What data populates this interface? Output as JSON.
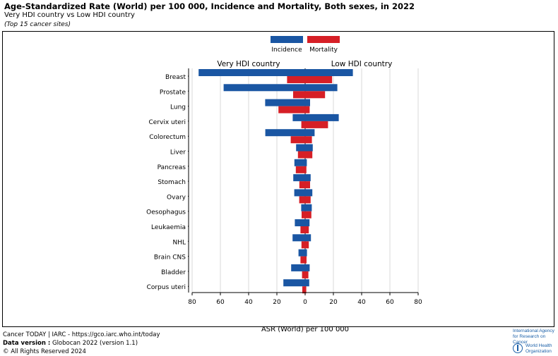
{
  "header": {
    "title": "Age-Standardized Rate (World) per 100 000, Incidence and Mortality, Both sexes, in 2022",
    "subtitle": "Very HDI country vs Low HDI country",
    "note": "(Top 15 cancer sites)"
  },
  "footer": {
    "line1": "Cancer TODAY | IARC - https://gco.iarc.who.int/today",
    "line2_label": "Data version :",
    "line2_value": " Globocan 2022 (version 1.1)",
    "line3": "© All Rights Reserved 2024"
  },
  "logos": {
    "iarc_line1": "International Agency",
    "iarc_line2": "for Research on Cancer",
    "who_line1": "World Health",
    "who_line2": "Organization"
  },
  "colors": {
    "incidence": "#1a56a3",
    "mortality": "#d61f26",
    "grid": "#d9d9d9",
    "logo": "#1a5fa8"
  },
  "chart_data": {
    "type": "bar",
    "orientation": "horizontal-back-to-back",
    "left_group": "Very HDI country",
    "right_group": "Low HDI country",
    "xlabel": "ASR (World) per 100 000",
    "xlim": [
      -80,
      80
    ],
    "xticks": [
      -80,
      -60,
      -40,
      -20,
      0,
      20,
      40,
      60,
      80
    ],
    "xtick_labels": [
      "80",
      "60",
      "40",
      "20",
      "0",
      "20",
      "40",
      "60",
      "80"
    ],
    "grid": true,
    "legend_position": "top-center",
    "categories": [
      "Breast",
      "Prostate",
      "Lung",
      "Cervix uteri",
      "Colorectum",
      "Liver",
      "Pancreas",
      "Stomach",
      "Ovary",
      "Oesophagus",
      "Leukaemia",
      "NHL",
      "Brain CNS",
      "Bladder",
      "Corpus uteri"
    ],
    "series": [
      {
        "name": "Incidence",
        "very_hdi": [
          75.4,
          57.7,
          28.3,
          8.8,
          28.2,
          6.4,
          7.6,
          8.4,
          7.7,
          2.8,
          7.3,
          8.9,
          4.7,
          9.9,
          15.4
        ],
        "low_hdi": [
          33.8,
          22.8,
          3.5,
          23.8,
          6.7,
          5.4,
          1.2,
          3.9,
          5.1,
          4.7,
          3.1,
          4.1,
          1.3,
          3.2,
          2.9
        ]
      },
      {
        "name": "Mortality",
        "very_hdi": [
          12.8,
          8.5,
          18.9,
          2.7,
          10.2,
          5.1,
          6.6,
          4.1,
          4.2,
          2.5,
          3.3,
          2.6,
          3.3,
          2.2,
          2.0
        ],
        "low_hdi": [
          19.1,
          14.1,
          3.2,
          16.2,
          4.8,
          5.1,
          0.9,
          3.5,
          3.9,
          4.4,
          2.6,
          2.6,
          1.0,
          2.3,
          0.8
        ]
      }
    ]
  }
}
